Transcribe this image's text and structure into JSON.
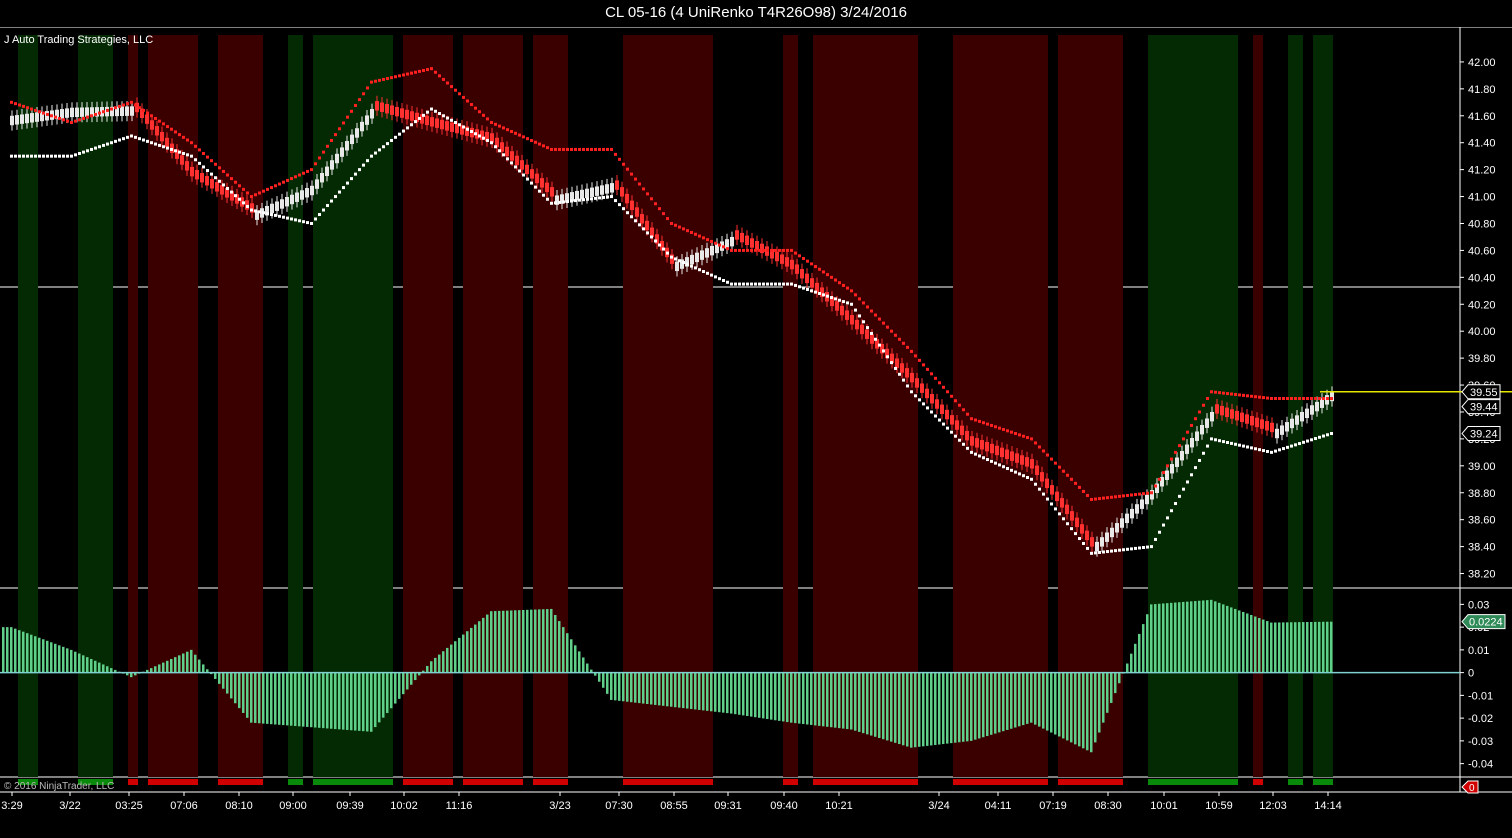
{
  "window": {
    "title": "CL 05-16 (4 UniRenko T4R26O98)  3/24/2016"
  },
  "panel": {
    "strategy_label": "J Auto Trading Strategies, LLC",
    "copyright": "© 2016 NinjaTrader, LLC"
  },
  "colors": {
    "background": "#000000",
    "bear_zone": "#3a0000",
    "bull_zone": "#032a03",
    "bull_candle": "#e8e8e8",
    "bear_candle": "#ff3030",
    "resistance_dots": "#ff2020",
    "support_dots": "#ffffff",
    "histogram": "#5fcf8a",
    "zero_line": "#7fd0d0",
    "last_price_line": "#e6e600"
  },
  "price_axis": {
    "ticks": [
      "42.00",
      "41.80",
      "41.60",
      "41.40",
      "41.20",
      "41.00",
      "40.80",
      "40.60",
      "40.40",
      "40.20",
      "40.00",
      "39.80",
      "39.60",
      "39.40",
      "39.20",
      "39.00",
      "38.80",
      "38.60",
      "38.40",
      "38.20"
    ],
    "markers": [
      {
        "label": "39.55",
        "value": 39.55,
        "color": "#ffffff",
        "bg": "#000000"
      },
      {
        "label": "39.44",
        "value": 39.44,
        "color": "#ffffff",
        "bg": "#000000"
      },
      {
        "label": "39.24",
        "value": 39.24,
        "color": "#ffffff",
        "bg": "#000000"
      }
    ]
  },
  "osc_axis": {
    "ticks": [
      "0.03",
      "0.02",
      "0.01",
      "0",
      "-0.01",
      "-0.02",
      "-0.03",
      "-0.04"
    ],
    "marker": {
      "label": "0.0224",
      "value": 0.0224
    }
  },
  "bottom_axis": {
    "marker": {
      "label": "0"
    }
  },
  "time_axis": {
    "labels": [
      "3:29",
      "3/22",
      "03:25",
      "07:06",
      "08:10",
      "09:00",
      "09:39",
      "10:02",
      "11:16",
      "3/23",
      "07:30",
      "08:55",
      "09:31",
      "09:40",
      "10:21",
      "3/24",
      "04:11",
      "07:19",
      "08:30",
      "10:01",
      "10:59",
      "12:03",
      "14:14"
    ]
  },
  "chart_data": {
    "type": "candlestick",
    "title": "CL 05-16 (4 UniRenko T4R26O98)  3/24/2016",
    "ylim": [
      38.1,
      42.2
    ],
    "x": [
      "3:29",
      "3/22",
      "03:25",
      "07:06",
      "08:10",
      "09:00",
      "09:39",
      "10:02",
      "11:16",
      "3/23",
      "07:30",
      "08:55",
      "09:31",
      "09:40",
      "10:21",
      "3/24",
      "04:11",
      "07:19",
      "08:30",
      "10:01",
      "10:59",
      "12:03",
      "14:14"
    ],
    "close": [
      41.6,
      41.66,
      41.67,
      41.15,
      40.88,
      41.08,
      41.65,
      41.52,
      41.4,
      41.0,
      41.1,
      40.5,
      40.7,
      40.46,
      40.05,
      39.62,
      39.15,
      38.98,
      38.4,
      38.82,
      39.4,
      39.25,
      39.55
    ],
    "resistance_level": [
      41.7,
      41.55,
      41.7,
      41.4,
      41.0,
      41.2,
      41.85,
      41.95,
      41.55,
      41.35,
      41.35,
      40.8,
      40.6,
      40.6,
      40.3,
      39.85,
      39.35,
      39.2,
      38.75,
      38.8,
      39.55,
      39.5,
      39.5
    ],
    "support_level": [
      41.3,
      41.3,
      41.45,
      41.3,
      40.9,
      40.8,
      41.3,
      41.65,
      41.4,
      40.95,
      41.0,
      40.55,
      40.35,
      40.35,
      40.2,
      39.55,
      39.1,
      38.9,
      38.35,
      38.4,
      39.2,
      39.1,
      39.24
    ],
    "last_price": 39.55,
    "oscillator": {
      "name": "histogram",
      "ylim": [
        -0.045,
        0.035
      ],
      "values": [
        0.02,
        0.01,
        -0.002,
        0.01,
        -0.022,
        -0.024,
        -0.026,
        0.005,
        0.027,
        0.028,
        -0.012,
        -0.015,
        -0.018,
        -0.022,
        -0.025,
        -0.033,
        -0.03,
        -0.022,
        -0.035,
        0.03,
        0.032,
        0.022,
        0.0224
      ]
    },
    "zones": [
      {
        "from": 0,
        "to": 18,
        "state": "none"
      },
      {
        "from": 18,
        "to": 38,
        "state": "bull"
      },
      {
        "from": 78,
        "to": 113,
        "state": "bull"
      },
      {
        "from": 128,
        "to": 138,
        "state": "bear"
      },
      {
        "from": 148,
        "to": 198,
        "state": "bear"
      },
      {
        "from": 218,
        "to": 263,
        "state": "bear"
      },
      {
        "from": 288,
        "to": 303,
        "state": "bull"
      },
      {
        "from": 313,
        "to": 393,
        "state": "bull"
      },
      {
        "from": 403,
        "to": 453,
        "state": "bear"
      },
      {
        "from": 463,
        "to": 523,
        "state": "bear"
      },
      {
        "from": 533,
        "to": 568,
        "state": "bear"
      },
      {
        "from": 623,
        "to": 713,
        "state": "bear"
      },
      {
        "from": 783,
        "to": 798,
        "state": "bear"
      },
      {
        "from": 813,
        "to": 918,
        "state": "bear"
      },
      {
        "from": 953,
        "to": 1048,
        "state": "bear"
      },
      {
        "from": 1058,
        "to": 1123,
        "state": "bear"
      },
      {
        "from": 1148,
        "to": 1238,
        "state": "bull"
      },
      {
        "from": 1253,
        "to": 1263,
        "state": "bear"
      },
      {
        "from": 1288,
        "to": 1303,
        "state": "bull"
      },
      {
        "from": 1313,
        "to": 1333,
        "state": "bull"
      }
    ],
    "xlabel": "",
    "ylabel": ""
  }
}
